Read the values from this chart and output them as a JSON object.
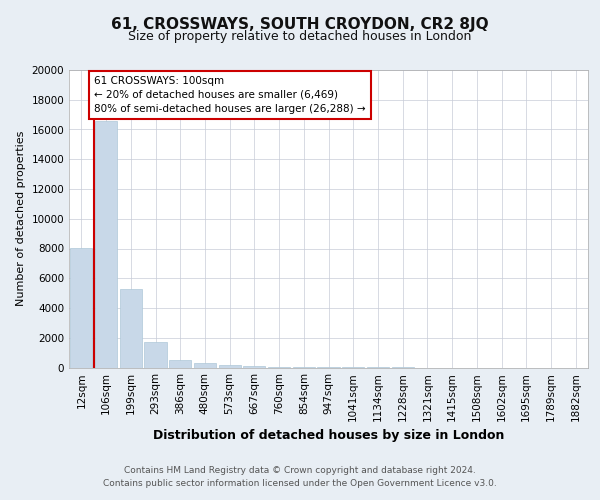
{
  "title": "61, CROSSWAYS, SOUTH CROYDON, CR2 8JQ",
  "subtitle": "Size of property relative to detached houses in London",
  "xlabel": "Distribution of detached houses by size in London",
  "ylabel": "Number of detached properties",
  "categories": [
    "12sqm",
    "106sqm",
    "199sqm",
    "293sqm",
    "386sqm",
    "480sqm",
    "573sqm",
    "667sqm",
    "760sqm",
    "854sqm",
    "947sqm",
    "1041sqm",
    "1134sqm",
    "1228sqm",
    "1321sqm",
    "1415sqm",
    "1508sqm",
    "1602sqm",
    "1695sqm",
    "1789sqm",
    "1882sqm"
  ],
  "values": [
    8050,
    16600,
    5280,
    1700,
    530,
    320,
    180,
    80,
    30,
    10,
    5,
    2,
    1,
    1,
    0,
    0,
    0,
    0,
    0,
    0,
    0
  ],
  "bar_color": "#c8d8e8",
  "bar_edge_color": "#afc8d8",
  "property_line_color": "#cc0000",
  "annotation_box_text": "61 CROSSWAYS: 100sqm\n← 20% of detached houses are smaller (6,469)\n80% of semi-detached houses are larger (26,288) →",
  "annotation_box_color": "#cc0000",
  "annotation_box_fill": "#ffffff",
  "ylim": [
    0,
    20000
  ],
  "yticks": [
    0,
    2000,
    4000,
    6000,
    8000,
    10000,
    12000,
    14000,
    16000,
    18000,
    20000
  ],
  "title_fontsize": 11,
  "subtitle_fontsize": 9,
  "ylabel_fontsize": 8,
  "xlabel_fontsize": 9,
  "tick_fontsize": 7.5,
  "footer_text": "Contains HM Land Registry data © Crown copyright and database right 2024.\nContains public sector information licensed under the Open Government Licence v3.0.",
  "background_color": "#e8eef4",
  "plot_background_color": "#ffffff",
  "grid_color": "#c8ccd8"
}
